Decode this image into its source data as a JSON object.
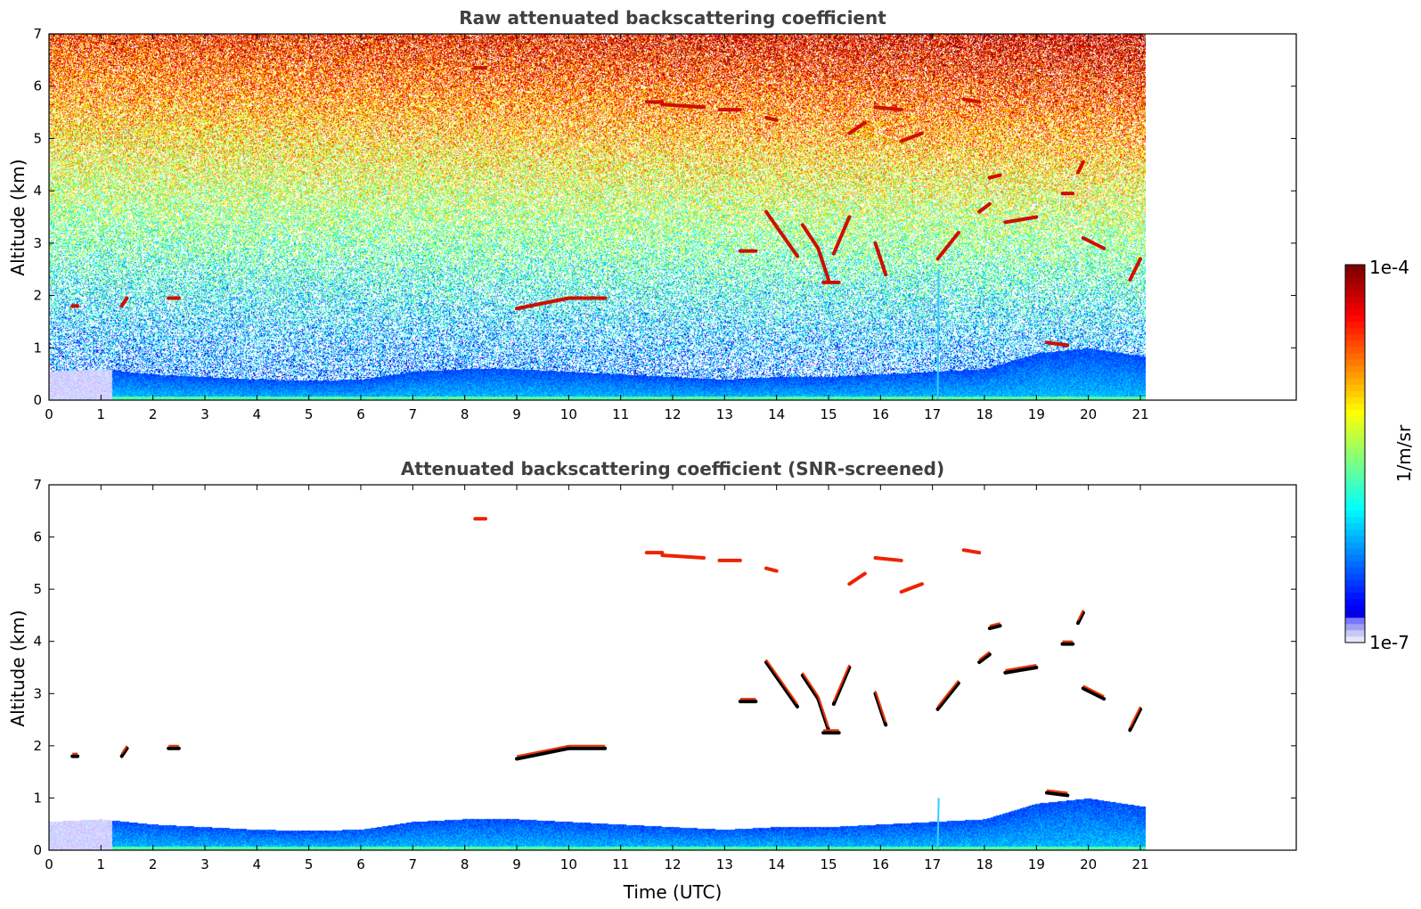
{
  "colors": {
    "jet": [
      "#00007f",
      "#0000ff",
      "#007fff",
      "#00ffff",
      "#7fff7f",
      "#ffff00",
      "#ff7f00",
      "#ff0000",
      "#7f0000"
    ],
    "lowest": [
      "#e6e6fa",
      "#c8c8f5",
      "#a0a0f0",
      "#7878ff"
    ]
  },
  "chart_data": [
    {
      "type": "heatmap",
      "title": "Raw attenuated backscattering coefficient",
      "xlabel": "",
      "ylabel": "Altitude (km)",
      "xlim": [
        0,
        24
      ],
      "ylim": [
        0,
        7
      ],
      "xticks": [
        "0",
        "1",
        "2",
        "3",
        "4",
        "5",
        "6",
        "7",
        "8",
        "9",
        "10",
        "11",
        "12",
        "13",
        "14",
        "15",
        "16",
        "17",
        "18",
        "19",
        "20",
        "21"
      ],
      "yticks": [
        "0",
        "1",
        "2",
        "3",
        "4",
        "5",
        "6",
        "7"
      ],
      "data_end_hour": 21.1
    },
    {
      "type": "heatmap",
      "title": "Attenuated backscattering coefficient (SNR-screened)",
      "xlabel": "Time (UTC)",
      "ylabel": "Altitude (km)",
      "xlim": [
        0,
        24
      ],
      "ylim": [
        0,
        7
      ],
      "xticks": [
        "0",
        "1",
        "2",
        "3",
        "4",
        "5",
        "6",
        "7",
        "8",
        "9",
        "10",
        "11",
        "12",
        "13",
        "14",
        "15",
        "16",
        "17",
        "18",
        "19",
        "20",
        "21"
      ],
      "yticks": [
        "0",
        "1",
        "2",
        "3",
        "4",
        "5",
        "6",
        "7"
      ],
      "data_end_hour": 21.1
    }
  ],
  "colorbar": {
    "max_label": "1e-4",
    "min_label": "1e-7",
    "unit_label": "1/m/sr",
    "scale": "log",
    "range": [
      1e-07,
      0.0001
    ]
  },
  "features": {
    "boundary_layer": [
      [
        0,
        0.55
      ],
      [
        1,
        0.6
      ],
      [
        2,
        0.5
      ],
      [
        3,
        0.45
      ],
      [
        4,
        0.4
      ],
      [
        5,
        0.38
      ],
      [
        6,
        0.4
      ],
      [
        7,
        0.55
      ],
      [
        8,
        0.6
      ],
      [
        9,
        0.6
      ],
      [
        10,
        0.55
      ],
      [
        11,
        0.5
      ],
      [
        12,
        0.45
      ],
      [
        13,
        0.4
      ],
      [
        14,
        0.45
      ],
      [
        15,
        0.45
      ],
      [
        16,
        0.5
      ],
      [
        17,
        0.55
      ],
      [
        18,
        0.6
      ],
      [
        19,
        0.9
      ],
      [
        20,
        1.0
      ],
      [
        21,
        0.85
      ]
    ],
    "clouds": [
      {
        "t0": 8.2,
        "t1": 8.4,
        "h0": 6.35,
        "h1": 6.35,
        "w": 2
      },
      {
        "t0": 11.5,
        "t1": 11.8,
        "h0": 5.7,
        "h1": 5.7,
        "w": 2
      },
      {
        "t0": 11.8,
        "t1": 12.6,
        "h0": 5.65,
        "h1": 5.6,
        "w": 2
      },
      {
        "t0": 12.9,
        "t1": 13.3,
        "h0": 5.55,
        "h1": 5.55,
        "w": 2
      },
      {
        "t0": 13.8,
        "t1": 14.0,
        "h0": 5.4,
        "h1": 5.35,
        "w": 2
      },
      {
        "t0": 15.4,
        "t1": 15.7,
        "h0": 5.1,
        "h1": 5.3,
        "w": 2
      },
      {
        "t0": 15.9,
        "t1": 16.4,
        "h0": 5.6,
        "h1": 5.55,
        "w": 2
      },
      {
        "t0": 16.4,
        "t1": 16.8,
        "h0": 4.95,
        "h1": 5.1,
        "w": 2
      },
      {
        "t0": 17.6,
        "t1": 17.9,
        "h0": 5.75,
        "h1": 5.7,
        "w": 2
      },
      {
        "t0": 18.1,
        "t1": 18.3,
        "h0": 4.25,
        "h1": 4.3,
        "w": 2
      },
      {
        "t0": 17.1,
        "t1": 17.5,
        "h0": 2.7,
        "h1": 3.2,
        "w": 2
      },
      {
        "t0": 17.9,
        "t1": 18.1,
        "h0": 3.6,
        "h1": 3.75,
        "w": 2
      },
      {
        "t0": 18.4,
        "t1": 19.0,
        "h0": 3.4,
        "h1": 3.5,
        "w": 2
      },
      {
        "t0": 19.5,
        "t1": 19.7,
        "h0": 3.95,
        "h1": 3.95,
        "w": 2
      },
      {
        "t0": 19.8,
        "t1": 19.9,
        "h0": 4.35,
        "h1": 4.55,
        "w": 2
      },
      {
        "t0": 19.9,
        "t1": 20.3,
        "h0": 3.1,
        "h1": 2.9,
        "w": 2
      },
      {
        "t0": 20.8,
        "t1": 21.0,
        "h0": 2.3,
        "h1": 2.7,
        "w": 2
      },
      {
        "t0": 13.3,
        "t1": 13.6,
        "h0": 2.85,
        "h1": 2.85,
        "w": 2
      },
      {
        "t0": 13.8,
        "t1": 14.4,
        "h0": 3.6,
        "h1": 2.75,
        "w": 2
      },
      {
        "t0": 14.5,
        "t1": 14.8,
        "h0": 3.35,
        "h1": 2.9,
        "w": 2
      },
      {
        "t0": 14.8,
        "t1": 15.0,
        "h0": 2.9,
        "h1": 2.3,
        "w": 2
      },
      {
        "t0": 15.1,
        "t1": 15.4,
        "h0": 2.8,
        "h1": 3.5,
        "w": 2
      },
      {
        "t0": 14.9,
        "t1": 15.2,
        "h0": 2.25,
        "h1": 2.25,
        "w": 2
      },
      {
        "t0": 15.9,
        "t1": 16.1,
        "h0": 3.0,
        "h1": 2.4,
        "w": 2
      },
      {
        "t0": 9.0,
        "t1": 10.0,
        "h0": 1.75,
        "h1": 1.95,
        "w": 2
      },
      {
        "t0": 10.0,
        "t1": 10.7,
        "h0": 1.95,
        "h1": 1.95,
        "w": 2
      },
      {
        "t0": 1.4,
        "t1": 1.5,
        "h0": 1.8,
        "h1": 1.95,
        "w": 2
      },
      {
        "t0": 2.3,
        "t1": 2.5,
        "h0": 1.95,
        "h1": 1.95,
        "w": 2
      },
      {
        "t0": 0.45,
        "t1": 0.55,
        "h0": 1.8,
        "h1": 1.8,
        "w": 2
      },
      {
        "t0": 19.2,
        "t1": 19.6,
        "h0": 1.1,
        "h1": 1.05,
        "w": 2
      }
    ]
  }
}
